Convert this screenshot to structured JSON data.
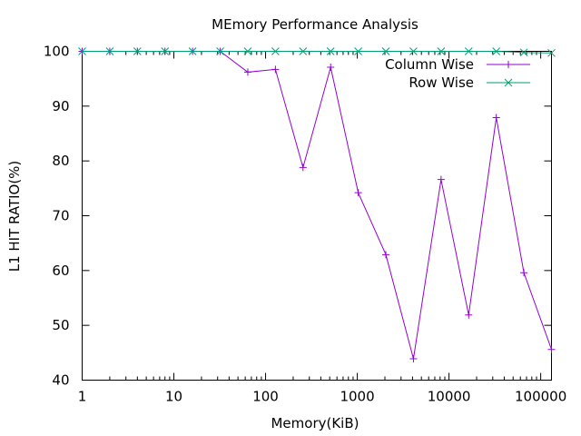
{
  "chart_data": {
    "type": "line",
    "title": "MEmory Performance Analysis",
    "xlabel": "Memory(KiB)",
    "ylabel": "L1 HIT RATIO(%)",
    "x_scale": "log",
    "xlim": [
      1,
      131072
    ],
    "ylim": [
      40,
      100
    ],
    "x_ticks": [
      1,
      10,
      100,
      1000,
      10000,
      100000
    ],
    "x_tick_labels": [
      "1",
      "10",
      "100",
      "1000",
      "10000",
      "100000"
    ],
    "y_ticks": [
      40,
      50,
      60,
      70,
      80,
      90,
      100
    ],
    "y_tick_labels": [
      "40",
      "50",
      "60",
      "70",
      "80",
      "90",
      "100"
    ],
    "grid": false,
    "legend_position": "top-right",
    "x": [
      1,
      2,
      4,
      8,
      16,
      32,
      64,
      128,
      256,
      512,
      1024,
      2048,
      4096,
      8192,
      16384,
      32768,
      65536,
      131072
    ],
    "series": [
      {
        "name": "Column Wise",
        "color": "#9400d3",
        "marker": "plus",
        "values": [
          100,
          100,
          100,
          100,
          100,
          100,
          96.2,
          96.7,
          78.8,
          97.1,
          74.2,
          62.9,
          43.9,
          76.6,
          51.9,
          87.9,
          59.6,
          45.6
        ]
      },
      {
        "name": "Row Wise",
        "color": "#009e73",
        "marker": "cross",
        "values": [
          100,
          100,
          100,
          100,
          100,
          100,
          100,
          100,
          100,
          100,
          100,
          100,
          100,
          100,
          100,
          100,
          99.8,
          99.7
        ]
      }
    ]
  }
}
